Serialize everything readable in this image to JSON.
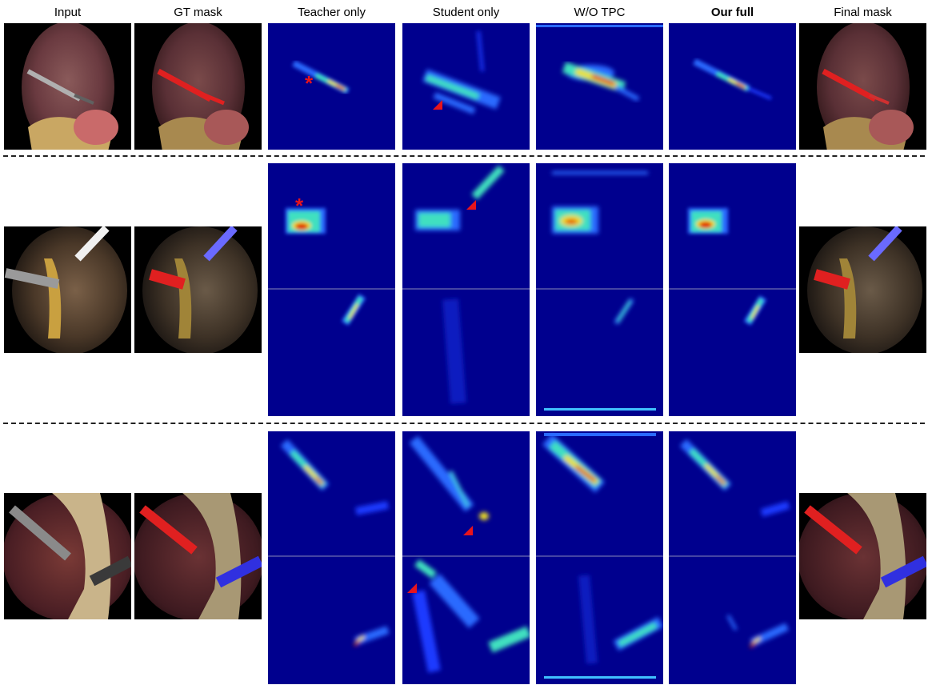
{
  "columns": [
    {
      "key": "input",
      "label": "Input",
      "bold": false
    },
    {
      "key": "gt",
      "label": "GT mask",
      "bold": false
    },
    {
      "key": "teacher",
      "label": "Teacher only",
      "bold": false
    },
    {
      "key": "student",
      "label": "Student only",
      "bold": false
    },
    {
      "key": "wotpc",
      "label": "W/O TPC",
      "bold": false
    },
    {
      "key": "full",
      "label": "Our full",
      "bold": true
    },
    {
      "key": "final",
      "label": "Final mask",
      "bold": false
    }
  ],
  "colors": {
    "heatmap_bg": "#00008e",
    "mask_red": "#e02020",
    "mask_blue": "#6a6aff",
    "marker_red": "#e8141c",
    "tissue_dark": "#4a1e24",
    "tissue_yellow": "#c9a763"
  },
  "markers": [
    {
      "row": 1,
      "column": "teacher",
      "shape": "asterisk"
    },
    {
      "row": 1,
      "column": "student",
      "shape": "triangle"
    },
    {
      "row": 2,
      "column": "teacher",
      "shape": "asterisk"
    },
    {
      "row": 2,
      "column": "student",
      "shape": "triangle"
    },
    {
      "row": 3,
      "column": "student",
      "shape": "triangle"
    },
    {
      "row": 3,
      "column": "student",
      "shape": "triangle"
    }
  ]
}
